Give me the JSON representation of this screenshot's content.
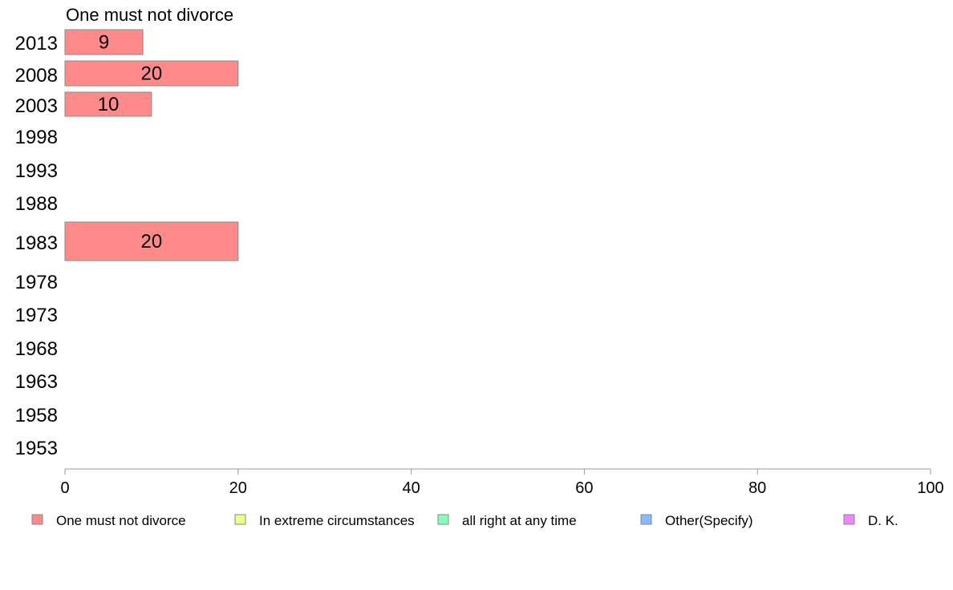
{
  "chart_data": {
    "type": "bar",
    "orientation": "horizontal",
    "stacked": true,
    "title": "One must not divorce",
    "categories": [
      "2013",
      "2008",
      "2003",
      "1998",
      "1993",
      "1988",
      "1983",
      "1978",
      "1973",
      "1968",
      "1963",
      "1958",
      "1953"
    ],
    "series": [
      {
        "name": "One must not divorce",
        "color": "#ff8a8a",
        "values": [
          9,
          20,
          10,
          null,
          null,
          null,
          20,
          null,
          null,
          null,
          null,
          null,
          null
        ],
        "labels": [
          "9",
          "20",
          "10",
          "",
          "",
          "",
          "20",
          "",
          "",
          "",
          "",
          "",
          ""
        ]
      }
    ],
    "xlim": [
      0,
      100
    ],
    "xticks": [
      "0",
      "20",
      "40",
      "60",
      "80",
      "100"
    ],
    "grid": false,
    "legend_position": "bottom",
    "legend": [
      {
        "name": "One must not divorce",
        "color": "#ff8a8a"
      },
      {
        "name": "In extreme circumstances",
        "color": "#eeff88"
      },
      {
        "name": "all right at any time",
        "color": "#88ffbb"
      },
      {
        "name": "Other(Specify)",
        "color": "#88bbff"
      },
      {
        "name": "D. K.",
        "color": "#ee88ff"
      }
    ]
  }
}
